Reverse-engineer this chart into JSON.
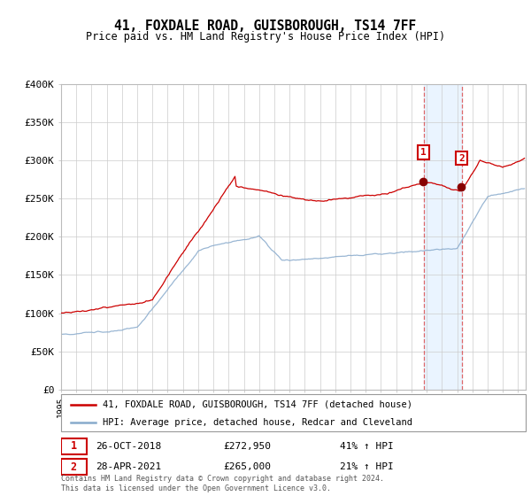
{
  "title": "41, FOXDALE ROAD, GUISBOROUGH, TS14 7FF",
  "subtitle": "Price paid vs. HM Land Registry's House Price Index (HPI)",
  "ylim": [
    0,
    400000
  ],
  "yticks": [
    0,
    50000,
    100000,
    150000,
    200000,
    250000,
    300000,
    350000,
    400000
  ],
  "ytick_labels": [
    "£0",
    "£50K",
    "£100K",
    "£150K",
    "£200K",
    "£250K",
    "£300K",
    "£350K",
    "£400K"
  ],
  "legend_property_label": "41, FOXDALE ROAD, GUISBOROUGH, TS14 7FF (detached house)",
  "legend_hpi_label": "HPI: Average price, detached house, Redcar and Cleveland",
  "property_color": "#cc0000",
  "hpi_color": "#88aacc",
  "sale1_year": 2018.79,
  "sale2_year": 2021.29,
  "sale1_price": 272950,
  "sale2_price": 265000,
  "sale1_date": "26-OCT-2018",
  "sale1_price_str": "£272,950",
  "sale1_pct": "41% ↑ HPI",
  "sale2_date": "28-APR-2021",
  "sale2_price_str": "£265,000",
  "sale2_pct": "21% ↑ HPI",
  "footer": "Contains HM Land Registry data © Crown copyright and database right 2024.\nThis data is licensed under the Open Government Licence v3.0.",
  "background_color": "#ffffff",
  "grid_color": "#cccccc",
  "shade_color": "#ddeeff",
  "xlim_start": 1995,
  "xlim_end": 2025.5
}
